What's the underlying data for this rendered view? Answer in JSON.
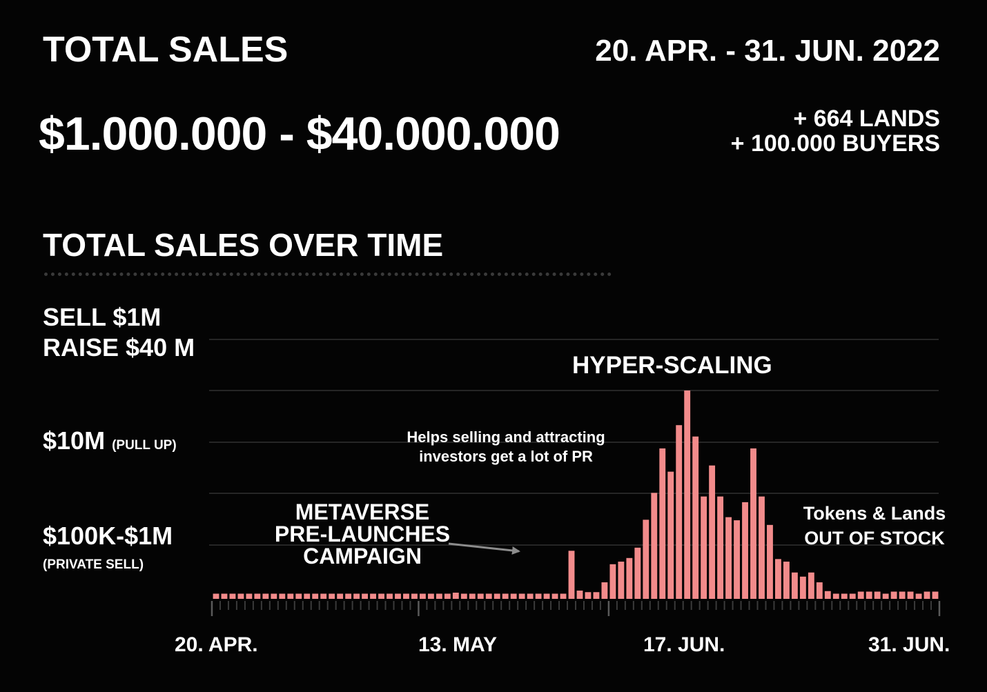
{
  "header": {
    "title": "TOTAL SALES",
    "date_range": "20. APR. - 31. JUN. 2022",
    "total_range": "$1.000.000 - $40.000.000",
    "lands": "+ 664 LANDS",
    "buyers": "+ 100.000 BUYERS"
  },
  "chart_data": {
    "type": "bar",
    "title": "TOTAL SALES OVER TIME",
    "y_labels": {
      "top_line1": "SELL $1M",
      "top_line2": "RAISE $40 M",
      "mid": "$10M",
      "mid_note": "(PULL UP)",
      "low": "$100K-$1M",
      "low_note": "(PRIVATE SELL)"
    },
    "x_labels": [
      "20. APR.",
      "13. MAY",
      "17. JUN.",
      "31. JUN."
    ],
    "annotations": {
      "hyper": "HYPER-SCALING",
      "pr_line1": "Helps selling and attracting",
      "pr_line2": "investors get a lot of PR",
      "meta_line1": "METAVERSE",
      "meta_line2": "PRE-LAUNCHES",
      "meta_line3": "CAMPAIGN",
      "stock_line1": "Tokens & Lands",
      "stock_line2": "OUT OF STOCK"
    },
    "grid": true,
    "values": [
      1,
      1,
      1,
      1,
      1,
      1,
      1,
      1,
      1,
      1,
      1,
      1,
      1,
      1,
      1,
      1,
      1,
      1,
      1,
      1,
      1,
      1,
      1,
      1,
      1,
      1,
      1,
      1,
      1,
      1.2,
      1,
      1,
      1,
      1,
      1,
      1,
      1,
      1,
      1,
      1,
      1,
      1,
      1,
      9.3,
      1.6,
      1.3,
      1.3,
      3.2,
      6.7,
      7.2,
      7.9,
      9.9,
      15.3,
      20.5,
      29.1,
      24.6,
      33.6,
      40.3,
      31.4,
      19.8,
      25.8,
      19.8,
      15.8,
      15.2,
      18.7,
      29.1,
      19.8,
      14.3,
      7.7,
      7.2,
      5.1,
      4.3,
      5.1,
      3.2,
      1.5,
      1,
      1,
      1,
      1.4,
      1.4,
      1.4,
      1,
      1.4,
      1.4,
      1.4,
      1,
      1.4,
      1.4
    ]
  },
  "colors": {
    "bar": "#f28b8b",
    "background": "#040404",
    "grid": "#262626"
  }
}
